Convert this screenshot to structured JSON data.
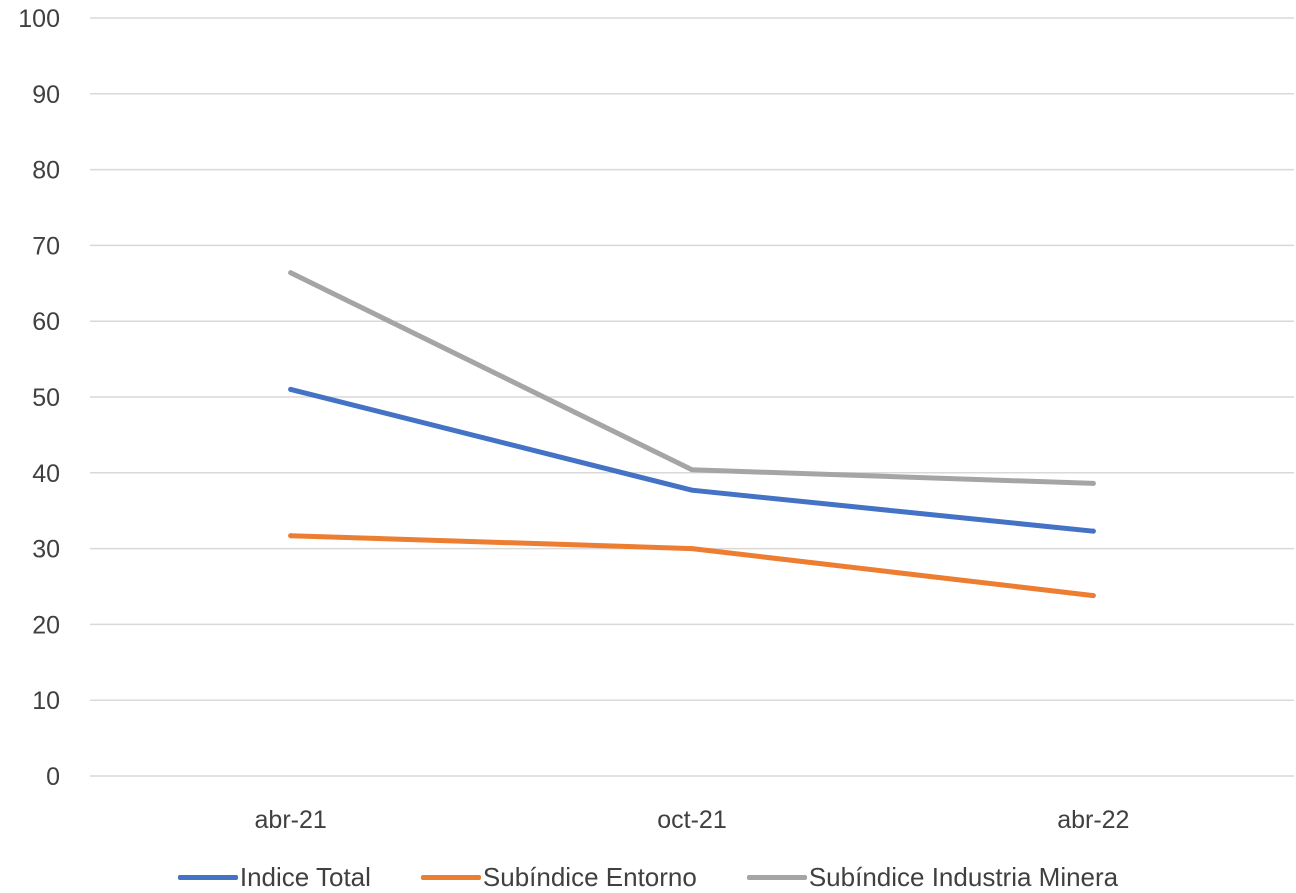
{
  "chart_data": {
    "type": "line",
    "categories": [
      "abr-21",
      "oct-21",
      "abr-22"
    ],
    "series": [
      {
        "name": "Indice Total",
        "values": [
          51.0,
          37.7,
          32.3
        ],
        "color": "#4472C4"
      },
      {
        "name": "Subíndice Entorno",
        "values": [
          31.7,
          30.0,
          23.8
        ],
        "color": "#ED7D31"
      },
      {
        "name": "Subíndice Industria Minera",
        "values": [
          66.4,
          40.4,
          38.6
        ],
        "color": "#A5A5A5"
      }
    ],
    "ylim": [
      0,
      100
    ],
    "yticks": [
      0,
      10,
      20,
      30,
      40,
      50,
      60,
      70,
      80,
      90,
      100
    ],
    "grid": true,
    "legend_position": "bottom"
  }
}
